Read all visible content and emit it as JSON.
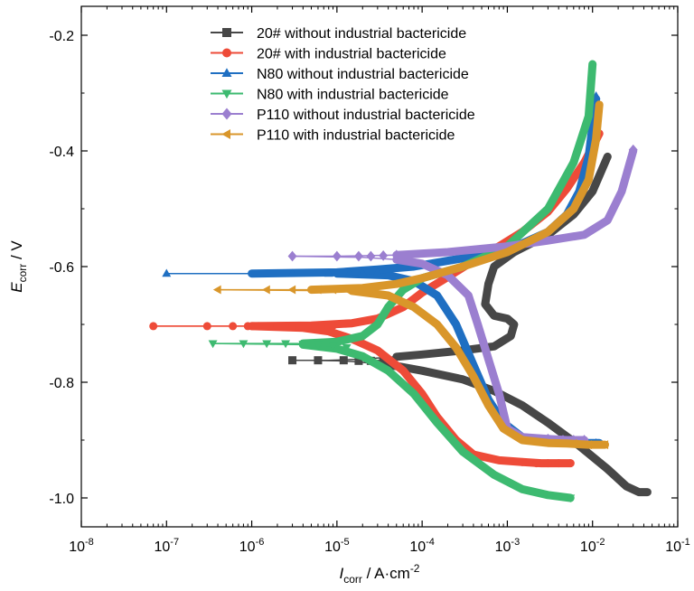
{
  "chart_data": {
    "type": "line",
    "x_scale": "log",
    "xlim": [
      1e-08,
      0.1
    ],
    "ylim": [
      -1.05,
      -0.15
    ],
    "x_ticks": [
      {
        "value": 1e-08,
        "base": "10",
        "exp": "-8"
      },
      {
        "value": 1e-07,
        "base": "10",
        "exp": "-7"
      },
      {
        "value": 1e-06,
        "base": "10",
        "exp": "-6"
      },
      {
        "value": 1e-05,
        "base": "10",
        "exp": "-5"
      },
      {
        "value": 0.0001,
        "base": "10",
        "exp": "-4"
      },
      {
        "value": 0.001,
        "base": "10",
        "exp": "-3"
      },
      {
        "value": 0.01,
        "base": "10",
        "exp": "-2"
      },
      {
        "value": 0.1,
        "base": "10",
        "exp": "-1"
      }
    ],
    "y_ticks": [
      {
        "value": -0.2,
        "label": "-0.2"
      },
      {
        "value": -0.4,
        "label": "-0.4"
      },
      {
        "value": -0.6,
        "label": "-0.6"
      },
      {
        "value": -0.8,
        "label": "-0.8"
      },
      {
        "value": -1.0,
        "label": "-1.0"
      }
    ],
    "xlabel": {
      "main": "I",
      "sub": "corr",
      "unit": " / A·cm",
      "sup": "-2"
    },
    "ylabel": {
      "main": "E",
      "sub": "corr",
      "unit": " / V"
    },
    "legend_position": "top-left",
    "grid": false,
    "series": [
      {
        "name": "20# without industrial bactericide",
        "color": "#474747",
        "marker": "square",
        "cathodic": [
          [
            0.044,
            -0.99
          ],
          [
            0.035,
            -0.99
          ],
          [
            0.025,
            -0.98
          ],
          [
            0.015,
            -0.95
          ],
          [
            0.007,
            -0.91
          ],
          [
            0.003,
            -0.87
          ],
          [
            0.0015,
            -0.84
          ],
          [
            0.0007,
            -0.815
          ],
          [
            0.0003,
            -0.795
          ],
          [
            0.0001,
            -0.78
          ],
          [
            5e-05,
            -0.772
          ],
          [
            3e-05,
            -0.768
          ],
          [
            1.5e-05,
            -0.764
          ],
          [
            1e-05,
            -0.763
          ],
          [
            5e-06,
            -0.762
          ],
          [
            3e-06,
            -0.762
          ]
        ],
        "anodic": [
          [
            3e-06,
            -0.762
          ],
          [
            8e-06,
            -0.762
          ],
          [
            2e-05,
            -0.76
          ],
          [
            5e-05,
            -0.756
          ],
          [
            0.0001,
            -0.752
          ],
          [
            0.0003,
            -0.745
          ],
          [
            0.0007,
            -0.738
          ],
          [
            0.0011,
            -0.72
          ],
          [
            0.0012,
            -0.7
          ],
          [
            0.001,
            -0.69
          ],
          [
            0.0007,
            -0.685
          ],
          [
            0.00055,
            -0.665
          ],
          [
            0.0006,
            -0.63
          ],
          [
            0.0007,
            -0.6
          ],
          [
            0.0012,
            -0.575
          ],
          [
            0.003,
            -0.545
          ],
          [
            0.006,
            -0.51
          ],
          [
            0.01,
            -0.47
          ],
          [
            0.015,
            -0.41
          ]
        ],
        "marker_points": [
          [
            3e-06,
            -0.762
          ],
          [
            6e-06,
            -0.762
          ],
          [
            1.2e-05,
            -0.762
          ],
          [
            1.8e-05,
            -0.763
          ],
          [
            2.5e-05,
            -0.763
          ],
          [
            3.5e-05,
            -0.764
          ]
        ]
      },
      {
        "name": "20# with industrial bactericide",
        "color": "#ee4b38",
        "marker": "circle",
        "cathodic": [
          [
            0.0055,
            -0.94
          ],
          [
            0.004,
            -0.94
          ],
          [
            0.0025,
            -0.94
          ],
          [
            0.0015,
            -0.938
          ],
          [
            0.0008,
            -0.935
          ],
          [
            0.0004,
            -0.925
          ],
          [
            0.00025,
            -0.9
          ],
          [
            0.00015,
            -0.86
          ],
          [
            0.0001,
            -0.82
          ],
          [
            6e-05,
            -0.78
          ],
          [
            3e-05,
            -0.745
          ],
          [
            1.5e-05,
            -0.725
          ],
          [
            8e-06,
            -0.712
          ],
          [
            4e-06,
            -0.706
          ],
          [
            1e-06,
            -0.703
          ],
          [
            7e-08,
            -0.703
          ]
        ],
        "anodic": [
          [
            7e-08,
            -0.703
          ],
          [
            1e-06,
            -0.703
          ],
          [
            5e-06,
            -0.702
          ],
          [
            1.5e-05,
            -0.698
          ],
          [
            3e-05,
            -0.69
          ],
          [
            6e-05,
            -0.67
          ],
          [
            0.0001,
            -0.645
          ],
          [
            0.0002,
            -0.618
          ],
          [
            0.0004,
            -0.59
          ],
          [
            0.0008,
            -0.565
          ],
          [
            0.0015,
            -0.54
          ],
          [
            0.003,
            -0.505
          ],
          [
            0.005,
            -0.465
          ],
          [
            0.008,
            -0.42
          ],
          [
            0.012,
            -0.37
          ]
        ],
        "marker_points": [
          [
            7e-08,
            -0.703
          ],
          [
            3e-07,
            -0.703
          ],
          [
            6e-07,
            -0.703
          ],
          [
            9e-07,
            -0.703
          ],
          [
            1.2e-06,
            -0.703
          ],
          [
            2e-06,
            -0.703
          ],
          [
            3e-06,
            -0.703
          ],
          [
            4.5e-06,
            -0.703
          ],
          [
            6.5e-06,
            -0.703
          ],
          [
            9e-06,
            -0.702
          ],
          [
            0.0015,
            -0.938
          ],
          [
            0.0022,
            -0.94
          ],
          [
            0.003,
            -0.94
          ],
          [
            0.004,
            -0.94
          ],
          [
            0.0055,
            -0.94
          ]
        ]
      },
      {
        "name": "N80 without industrial bactericide",
        "color": "#1f6fc2",
        "marker": "triangle-up",
        "cathodic": [
          [
            0.012,
            -0.905
          ],
          [
            0.008,
            -0.905
          ],
          [
            0.005,
            -0.903
          ],
          [
            0.003,
            -0.9
          ],
          [
            0.0015,
            -0.895
          ],
          [
            0.0009,
            -0.87
          ],
          [
            0.0006,
            -0.83
          ],
          [
            0.0004,
            -0.77
          ],
          [
            0.00025,
            -0.7
          ],
          [
            0.00015,
            -0.65
          ],
          [
            8e-05,
            -0.625
          ],
          [
            4e-05,
            -0.615
          ],
          [
            1e-05,
            -0.612
          ],
          [
            1e-07,
            -0.612
          ]
        ],
        "anodic": [
          [
            1e-07,
            -0.612
          ],
          [
            1e-06,
            -0.612
          ],
          [
            1e-05,
            -0.61
          ],
          [
            3e-05,
            -0.605
          ],
          [
            8e-05,
            -0.6
          ],
          [
            0.0002,
            -0.59
          ],
          [
            0.0006,
            -0.578
          ],
          [
            0.0015,
            -0.56
          ],
          [
            0.003,
            -0.54
          ],
          [
            0.005,
            -0.51
          ],
          [
            0.007,
            -0.47
          ],
          [
            0.009,
            -0.41
          ],
          [
            0.011,
            -0.31
          ]
        ],
        "marker_points": [
          [
            1e-07,
            -0.612
          ],
          [
            3e-06,
            -0.612
          ],
          [
            8e-06,
            -0.612
          ],
          [
            1.4e-05,
            -0.612
          ],
          [
            2e-05,
            -0.611
          ],
          [
            3e-05,
            -0.61
          ],
          [
            0.006,
            -0.905
          ],
          [
            0.008,
            -0.905
          ],
          [
            0.011,
            -0.905
          ],
          [
            0.011,
            -0.305
          ]
        ]
      },
      {
        "name": "N80 with industrial bactericide",
        "color": "#3dba70",
        "marker": "triangle-down",
        "cathodic": [
          [
            0.0055,
            -1.0
          ],
          [
            0.003,
            -0.995
          ],
          [
            0.0015,
            -0.985
          ],
          [
            0.0007,
            -0.96
          ],
          [
            0.0003,
            -0.92
          ],
          [
            0.00015,
            -0.87
          ],
          [
            8e-05,
            -0.82
          ],
          [
            4e-05,
            -0.78
          ],
          [
            2e-05,
            -0.755
          ],
          [
            1e-05,
            -0.742
          ],
          [
            4e-06,
            -0.735
          ],
          [
            3.5e-07,
            -0.733
          ]
        ],
        "anodic": [
          [
            3.5e-07,
            -0.733
          ],
          [
            4e-06,
            -0.733
          ],
          [
            1e-05,
            -0.73
          ],
          [
            2e-05,
            -0.72
          ],
          [
            3e-05,
            -0.7
          ],
          [
            4e-05,
            -0.67
          ],
          [
            6e-05,
            -0.64
          ],
          [
            0.0001,
            -0.62
          ],
          [
            0.0003,
            -0.6
          ],
          [
            0.001,
            -0.565
          ],
          [
            0.003,
            -0.5
          ],
          [
            0.006,
            -0.42
          ],
          [
            0.009,
            -0.34
          ],
          [
            0.01,
            -0.25
          ]
        ],
        "marker_points": [
          [
            3.5e-07,
            -0.733
          ],
          [
            8e-07,
            -0.733
          ],
          [
            1.5e-06,
            -0.733
          ],
          [
            2.5e-06,
            -0.733
          ],
          [
            4e-06,
            -0.734
          ],
          [
            6e-06,
            -0.735
          ],
          [
            9e-06,
            -0.737
          ],
          [
            1.3e-05,
            -0.74
          ],
          [
            0.0055,
            -1.0
          ]
        ]
      },
      {
        "name": "P110 without industrial bactericide",
        "color": "#9b7fd0",
        "marker": "diamond",
        "cathodic": [
          [
            0.008,
            -0.9
          ],
          [
            0.005,
            -0.9
          ],
          [
            0.003,
            -0.898
          ],
          [
            0.0015,
            -0.895
          ],
          [
            0.001,
            -0.88
          ],
          [
            0.0008,
            -0.82
          ],
          [
            0.0006,
            -0.76
          ],
          [
            0.00045,
            -0.7
          ],
          [
            0.00035,
            -0.65
          ],
          [
            0.0002,
            -0.615
          ],
          [
            0.0001,
            -0.595
          ],
          [
            5e-05,
            -0.588
          ],
          [
            2e-05,
            -0.584
          ],
          [
            3e-06,
            -0.582
          ]
        ],
        "anodic": [
          [
            3e-06,
            -0.582
          ],
          [
            1e-05,
            -0.582
          ],
          [
            5e-05,
            -0.58
          ],
          [
            0.0002,
            -0.575
          ],
          [
            0.001,
            -0.565
          ],
          [
            0.003,
            -0.555
          ],
          [
            0.008,
            -0.545
          ],
          [
            0.015,
            -0.52
          ],
          [
            0.022,
            -0.47
          ],
          [
            0.03,
            -0.4
          ]
        ],
        "marker_points": [
          [
            3e-06,
            -0.582
          ],
          [
            1e-05,
            -0.582
          ],
          [
            1.8e-05,
            -0.582
          ],
          [
            2.5e-05,
            -0.582
          ],
          [
            3.5e-05,
            -0.581
          ],
          [
            5e-05,
            -0.58
          ],
          [
            0.003,
            -0.898
          ],
          [
            0.0045,
            -0.9
          ],
          [
            0.006,
            -0.9
          ],
          [
            0.008,
            -0.9
          ],
          [
            0.03,
            -0.398
          ]
        ]
      },
      {
        "name": "P110 with industrial bactericide",
        "color": "#d9962a",
        "marker": "triangle-left",
        "cathodic": [
          [
            0.014,
            -0.908
          ],
          [
            0.009,
            -0.908
          ],
          [
            0.005,
            -0.906
          ],
          [
            0.003,
            -0.905
          ],
          [
            0.0015,
            -0.9
          ],
          [
            0.0009,
            -0.88
          ],
          [
            0.0006,
            -0.84
          ],
          [
            0.0004,
            -0.79
          ],
          [
            0.00025,
            -0.74
          ],
          [
            0.00015,
            -0.7
          ],
          [
            8e-05,
            -0.67
          ],
          [
            4e-05,
            -0.65
          ],
          [
            1.5e-05,
            -0.642
          ],
          [
            4e-07,
            -0.64
          ]
        ],
        "anodic": [
          [
            4e-07,
            -0.64
          ],
          [
            5e-06,
            -0.64
          ],
          [
            2e-05,
            -0.637
          ],
          [
            5e-05,
            -0.63
          ],
          [
            0.0001,
            -0.62
          ],
          [
            0.0003,
            -0.6
          ],
          [
            0.001,
            -0.575
          ],
          [
            0.003,
            -0.54
          ],
          [
            0.006,
            -0.5
          ],
          [
            0.009,
            -0.45
          ],
          [
            0.011,
            -0.38
          ],
          [
            0.012,
            -0.32
          ]
        ],
        "marker_points": [
          [
            4e-07,
            -0.64
          ],
          [
            1.5e-06,
            -0.64
          ],
          [
            3e-06,
            -0.64
          ],
          [
            6e-06,
            -0.64
          ],
          [
            9e-06,
            -0.64
          ],
          [
            1.3e-05,
            -0.64
          ],
          [
            1.8e-05,
            -0.64
          ],
          [
            2.5e-05,
            -0.638
          ],
          [
            0.006,
            -0.906
          ],
          [
            0.009,
            -0.908
          ],
          [
            0.014,
            -0.908
          ]
        ]
      }
    ]
  }
}
